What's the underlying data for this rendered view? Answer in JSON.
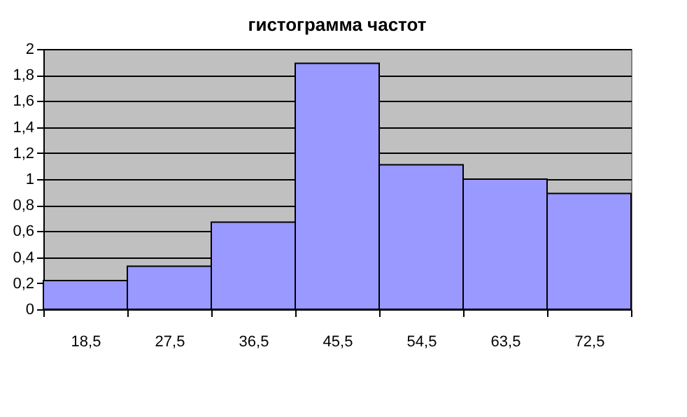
{
  "chart_data": {
    "type": "bar",
    "title": "гистограмма частот",
    "categories": [
      "18,5",
      "27,5",
      "36,5",
      "45,5",
      "54,5",
      "63,5",
      "72,5"
    ],
    "values": [
      0.22,
      0.33,
      0.67,
      1.89,
      1.11,
      1.0,
      0.89
    ],
    "color": "#9999ff",
    "ylim": [
      0,
      2
    ],
    "yticks": [
      0,
      {
        "value": 0.2,
        "label": "0,2"
      },
      {
        "value": 0.4,
        "label": "0,4"
      },
      {
        "value": 0.6,
        "label": "0,6"
      },
      {
        "value": 0.8,
        "label": "0,8"
      },
      1,
      {
        "value": 1.2,
        "label": "1,2"
      },
      {
        "value": 1.4,
        "label": "1,4"
      },
      {
        "value": 1.6,
        "label": "1,6"
      },
      {
        "value": 1.8,
        "label": "1,8"
      },
      2
    ],
    "grid": "y"
  }
}
